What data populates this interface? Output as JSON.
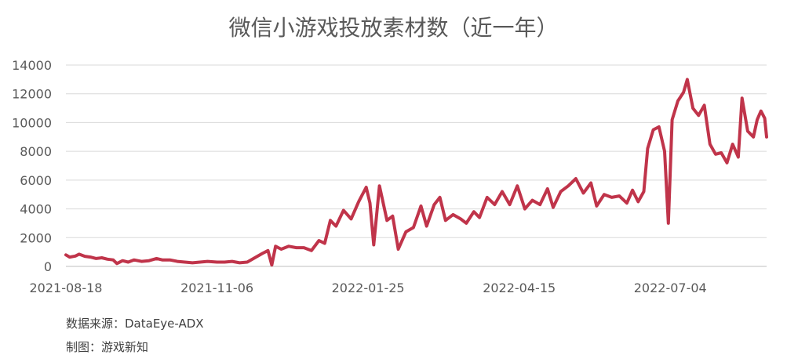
{
  "chart_data": {
    "type": "line",
    "title": "微信小游戏投放素材数（近一年）",
    "xlabel": "",
    "ylabel": "",
    "ylim": [
      0,
      14000
    ],
    "yticks": [
      0,
      2000,
      4000,
      6000,
      8000,
      10000,
      12000,
      14000
    ],
    "xticks": [
      "2021-08-18",
      "2021-11-06",
      "2022-01-25",
      "2022-04-15",
      "2022-07-04"
    ],
    "x_range": [
      "2021-08-18",
      "2022-08-24"
    ],
    "grid": true,
    "line_color": "#c0344a",
    "series": [
      {
        "points": [
          [
            "2021-08-18",
            800
          ],
          [
            "2021-08-20",
            650
          ],
          [
            "2021-08-23",
            720
          ],
          [
            "2021-08-25",
            850
          ],
          [
            "2021-08-28",
            700
          ],
          [
            "2021-08-31",
            650
          ],
          [
            "2021-09-03",
            550
          ],
          [
            "2021-09-06",
            600
          ],
          [
            "2021-09-09",
            500
          ],
          [
            "2021-09-12",
            450
          ],
          [
            "2021-09-14",
            200
          ],
          [
            "2021-09-17",
            400
          ],
          [
            "2021-09-20",
            300
          ],
          [
            "2021-09-23",
            450
          ],
          [
            "2021-09-27",
            350
          ],
          [
            "2021-10-01",
            400
          ],
          [
            "2021-10-05",
            550
          ],
          [
            "2021-10-08",
            450
          ],
          [
            "2021-10-12",
            450
          ],
          [
            "2021-10-16",
            350
          ],
          [
            "2021-10-20",
            300
          ],
          [
            "2021-10-24",
            250
          ],
          [
            "2021-10-28",
            300
          ],
          [
            "2021-11-01",
            350
          ],
          [
            "2021-11-06",
            300
          ],
          [
            "2021-11-10",
            300
          ],
          [
            "2021-11-14",
            350
          ],
          [
            "2021-11-18",
            250
          ],
          [
            "2021-11-22",
            300
          ],
          [
            "2021-11-26",
            600
          ],
          [
            "2021-11-30",
            900
          ],
          [
            "2021-12-03",
            1100
          ],
          [
            "2021-12-05",
            100
          ],
          [
            "2021-12-07",
            1400
          ],
          [
            "2021-12-10",
            1200
          ],
          [
            "2021-12-14",
            1400
          ],
          [
            "2021-12-18",
            1300
          ],
          [
            "2021-12-22",
            1300
          ],
          [
            "2021-12-26",
            1100
          ],
          [
            "2021-12-30",
            1800
          ],
          [
            "2022-01-02",
            1600
          ],
          [
            "2022-01-05",
            3200
          ],
          [
            "2022-01-08",
            2800
          ],
          [
            "2022-01-12",
            3900
          ],
          [
            "2022-01-16",
            3300
          ],
          [
            "2022-01-20",
            4500
          ],
          [
            "2022-01-24",
            5500
          ],
          [
            "2022-01-26",
            4400
          ],
          [
            "2022-01-28",
            1500
          ],
          [
            "2022-01-31",
            5600
          ],
          [
            "2022-02-04",
            3200
          ],
          [
            "2022-02-07",
            3500
          ],
          [
            "2022-02-10",
            1200
          ],
          [
            "2022-02-14",
            2400
          ],
          [
            "2022-02-18",
            2700
          ],
          [
            "2022-02-22",
            4200
          ],
          [
            "2022-02-25",
            2800
          ],
          [
            "2022-03-01",
            4300
          ],
          [
            "2022-03-04",
            4800
          ],
          [
            "2022-03-07",
            3200
          ],
          [
            "2022-03-11",
            3600
          ],
          [
            "2022-03-15",
            3300
          ],
          [
            "2022-03-18",
            3000
          ],
          [
            "2022-03-22",
            3800
          ],
          [
            "2022-03-25",
            3400
          ],
          [
            "2022-03-29",
            4800
          ],
          [
            "2022-04-02",
            4300
          ],
          [
            "2022-04-06",
            5200
          ],
          [
            "2022-04-10",
            4300
          ],
          [
            "2022-04-14",
            5600
          ],
          [
            "2022-04-18",
            4000
          ],
          [
            "2022-04-22",
            4600
          ],
          [
            "2022-04-26",
            4300
          ],
          [
            "2022-04-30",
            5400
          ],
          [
            "2022-05-03",
            4100
          ],
          [
            "2022-05-07",
            5200
          ],
          [
            "2022-05-11",
            5600
          ],
          [
            "2022-05-15",
            6100
          ],
          [
            "2022-05-19",
            5100
          ],
          [
            "2022-05-23",
            5800
          ],
          [
            "2022-05-26",
            4200
          ],
          [
            "2022-05-30",
            5000
          ],
          [
            "2022-06-03",
            4800
          ],
          [
            "2022-06-07",
            4900
          ],
          [
            "2022-06-11",
            4400
          ],
          [
            "2022-06-14",
            5300
          ],
          [
            "2022-06-17",
            4500
          ],
          [
            "2022-06-20",
            5200
          ],
          [
            "2022-06-22",
            8200
          ],
          [
            "2022-06-25",
            9500
          ],
          [
            "2022-06-28",
            9700
          ],
          [
            "2022-07-01",
            8000
          ],
          [
            "2022-07-03",
            3000
          ],
          [
            "2022-07-05",
            10200
          ],
          [
            "2022-07-08",
            11500
          ],
          [
            "2022-07-11",
            12100
          ],
          [
            "2022-07-13",
            13000
          ],
          [
            "2022-07-16",
            11000
          ],
          [
            "2022-07-19",
            10500
          ],
          [
            "2022-07-22",
            11200
          ],
          [
            "2022-07-25",
            8500
          ],
          [
            "2022-07-28",
            7800
          ],
          [
            "2022-07-31",
            7900
          ],
          [
            "2022-08-03",
            7200
          ],
          [
            "2022-08-06",
            8500
          ],
          [
            "2022-08-09",
            7600
          ],
          [
            "2022-08-11",
            11700
          ],
          [
            "2022-08-14",
            9400
          ],
          [
            "2022-08-17",
            9000
          ],
          [
            "2022-08-19",
            10200
          ],
          [
            "2022-08-21",
            10800
          ],
          [
            "2022-08-23",
            10300
          ],
          [
            "2022-08-24",
            9000
          ]
        ]
      }
    ]
  },
  "footer": {
    "source": "数据来源：DataEye-ADX",
    "credit": "制图：游戏新知"
  }
}
